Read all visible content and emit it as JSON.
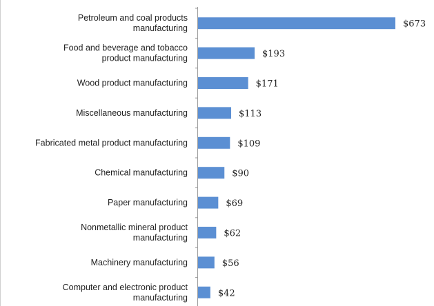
{
  "chart_data": {
    "type": "bar",
    "orientation": "horizontal",
    "title": "",
    "xlabel": "",
    "ylabel": "",
    "grid": false,
    "legend": "none",
    "bar_color": "#5b8fd3",
    "xlim": [
      0,
      700
    ],
    "categories": [
      [
        "Petroleum and coal products",
        "manufacturing"
      ],
      [
        "Food and beverage and tobacco",
        "product manufacturing"
      ],
      [
        "Wood product manufacturing"
      ],
      [
        "Miscellaneous manufacturing"
      ],
      [
        "Fabricated metal product manufacturing"
      ],
      [
        "Chemical manufacturing"
      ],
      [
        "Paper manufacturing"
      ],
      [
        "Nonmetallic mineral product",
        "manufacturing"
      ],
      [
        "Machinery manufacturing"
      ],
      [
        "Computer and electronic product",
        "manufacturing"
      ]
    ],
    "values": [
      673,
      193,
      171,
      113,
      109,
      90,
      69,
      62,
      56,
      42
    ],
    "value_labels": [
      "$673",
      "$193",
      "$171",
      "$113",
      "$109",
      "$90",
      "$69",
      "$62",
      "$56",
      "$42"
    ]
  }
}
